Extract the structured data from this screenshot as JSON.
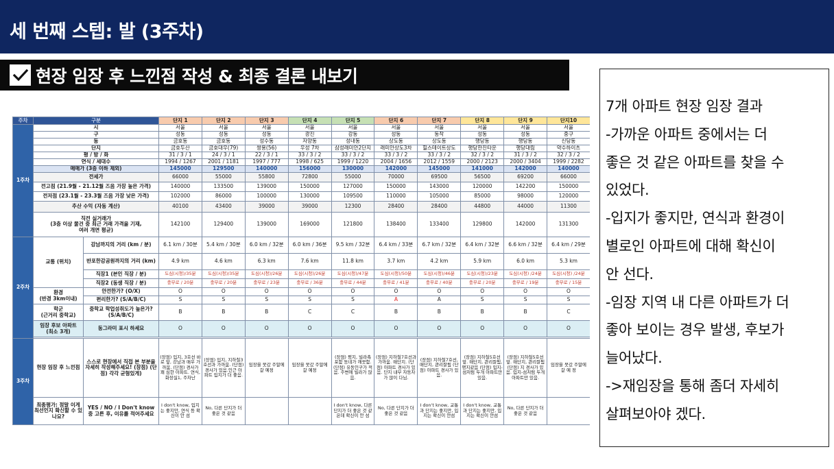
{
  "header": {
    "title": "세 번째 스텝: 발 (3주차)"
  },
  "section": {
    "title": "현장 임장 후 느낀점 작성 & 최종 결론 내보기"
  },
  "notes": [
    "7개 아파트 현장 임장 결과",
    "-가까운 아파트 중에서는 더",
    "좋은 것 같은 아파트를 찾을 수",
    "있었다.",
    "-입지가 좋지만, 연식과 환경이",
    "별로인 아파트에 대해 확신이",
    "안 선다.",
    "-임장 지역 내 다른 아파트가 더",
    "좋아 보이는 경우 발생, 후보가",
    "늘어났다.",
    "->재임장을 통해 좀더 자세히",
    "살펴보아야 겠다."
  ],
  "colors": {
    "top_bar": "#0f2660",
    "banner": "#0b0b0b",
    "table_header": "#1f4e98"
  },
  "sheet": {
    "head": {
      "week": "주차",
      "label": "구분"
    },
    "complex_headers": [
      {
        "label": "단지 1",
        "bg": "#f8cbad"
      },
      {
        "label": "단지 2",
        "bg": "#f8cbad"
      },
      {
        "label": "단지 3",
        "bg": "#f8cbad"
      },
      {
        "label": "단지 4",
        "bg": "#c6e0b4"
      },
      {
        "label": "단지 5",
        "bg": "#c6e0b4"
      },
      {
        "label": "단지 6",
        "bg": "#f8cbad"
      },
      {
        "label": "단지 7",
        "bg": "#f8cbad"
      },
      {
        "label": "단지 8",
        "bg": "#ffe699"
      },
      {
        "label": "단지 9",
        "bg": "#ffe699"
      },
      {
        "label": "단지10",
        "bg": "#ffe699"
      }
    ],
    "weeks": {
      "w1": "1주차",
      "w2": "2주차",
      "w3": "3주차"
    },
    "w1_rows": [
      {
        "label": "시",
        "values": [
          "서울",
          "서울",
          "서울",
          "서울",
          "서울",
          "서울",
          "서울",
          "서울",
          "서울",
          "서울"
        ]
      },
      {
        "label": "구",
        "values": [
          "성동",
          "성동",
          "성동",
          "광진",
          "강동",
          "성동",
          "동작",
          "성동",
          "성동",
          "중구"
        ]
      },
      {
        "label": "동",
        "values": [
          "금호동",
          "금호동",
          "성수동",
          "자양동",
          "성내동",
          "상도동",
          "상도동",
          "행당동",
          "행당동",
          "신당동"
        ]
      },
      {
        "label": "단지",
        "values": [
          "금호두산",
          "금호대우(79)",
          "쌍용(56)",
          "우성 7차",
          "삼성래미안2단지",
          "래미안상도3차",
          "힐스테이트상도",
          "행당한진타운",
          "행당대림",
          "약수하이츠"
        ]
      },
      {
        "label": "평 / 방 / 화",
        "values": [
          "31 / 3 / 1",
          "24 / 3 / 1",
          "22 / 3 / 1",
          "33 / 3 / 2",
          "33 / 3 / 2",
          "33 / 3 / 2",
          "33 / 3 / 2",
          "32 / 3 / 2",
          "31 / 3 / 2",
          "32 / 3 / 2"
        ]
      },
      {
        "label": "연식 / 세대수",
        "values": [
          "1994 / 1267",
          "2001 / 1181",
          "1997 / 777",
          "1998 / 625",
          "1999 / 1220",
          "2004 / 1656",
          "2012 / 1559",
          "2000 / 2123",
          "2000 / 3404",
          "1999 / 2282"
        ]
      },
      {
        "label": "매매가 (3층 이하 제외)",
        "values": [
          "145000",
          "129500",
          "140000",
          "156000",
          "130000",
          "142000",
          "145000",
          "141000",
          "142000",
          "140000"
        ]
      },
      {
        "label": "전세가",
        "values": [
          "66000",
          "55000",
          "55800",
          "72800",
          "55000",
          "70000",
          "69500",
          "56500",
          "69200",
          "66000"
        ]
      },
      {
        "label": "전고점 (21.9월 - 21.12월 즈음 가장 높은 가격)",
        "values": [
          "140000",
          "133500",
          "139000",
          "150000",
          "127000",
          "150000",
          "143000",
          "120000",
          "142200",
          "150000"
        ]
      },
      {
        "label": "전저점 (23.1월 - 23.3월 즈음 가장 낮은 가격)",
        "values": [
          "102000",
          "86000",
          "100000",
          "130000",
          "109500",
          "110000",
          "105000",
          "85000",
          "98000",
          "120000"
        ]
      },
      {
        "label": "추산 수익 (자동 계산)",
        "values": [
          "40100",
          "43400",
          "39000",
          "39000",
          "12300",
          "28400",
          "28400",
          "44800",
          "44000",
          "11300"
        ]
      }
    ],
    "recent": {
      "label_line1": "직전 실거래가",
      "label_line2": "(3층 이상 물건 중 최근 거래 가격을 기재,",
      "label_line3": "여러 개면 평균)",
      "values": [
        "142100",
        "129400",
        "139000",
        "169000",
        "121800",
        "138400",
        "133400",
        "129800",
        "142000",
        "131300"
      ]
    },
    "w2": {
      "transport_label": "교통 (위치)",
      "gangnam": {
        "label": "강남까지의 거리 (km / 분)",
        "values": [
          "6.1 km / 30분",
          "5.4 km / 30분",
          "6.0 km / 32분",
          "6.0 km / 36분",
          "9.5 km / 32분",
          "6.4 km / 33분",
          "6.7 km / 32분",
          "6.4 km / 32분",
          "6.6 km / 32분",
          "6.4 km / 29분"
        ]
      },
      "river": {
        "label": "반포한강공원까지의 거리 (km)",
        "values": [
          "4.9 km",
          "4.6 km",
          "6.3 km",
          "7.6 km",
          "11.8 km",
          "3.7 km",
          "4.2 km",
          "5.9 km",
          "6.0 km",
          "5.3 km"
        ]
      },
      "job1": {
        "label": "직장1 (본인 직장 / 분)",
        "values": [
          "도심(시청)/35분",
          "도심(시청)/35분",
          "도심(시청)/26분",
          "도심(시청)/26분",
          "도심(시청)/47분",
          "도심(시청)/50분",
          "도심(시청)/46분",
          "도심(시청)/23분",
          "도심(시청) /24분",
          "도심(시청) /24분"
        ]
      },
      "job2": {
        "label": "직장2 (동생 직장 / 분)",
        "values": [
          "충무로 / 20분",
          "충무로 / 20분",
          "충무로 / 23분",
          "충무로 / 36분",
          "충무로 / 44분",
          "충무로 / 41분",
          "충무로 / 40분",
          "충무로 / 20분",
          "충무로 / 19분",
          "충무로 / 15분"
        ]
      },
      "env_label1": "환경",
      "env_label2": "(반경 3km이내)",
      "safe": {
        "label": "안전한가? (O/X)",
        "values": [
          "O",
          "O",
          "O",
          "O",
          "O",
          "O",
          "O",
          "O",
          "O",
          "O"
        ]
      },
      "conv": {
        "label": "편리한가? (S/A/B/C)",
        "values": [
          "S",
          "S",
          "S",
          "S",
          "S",
          "A",
          "A",
          "S",
          "S",
          "S"
        ]
      },
      "school_label1": "학군",
      "school_label2": "(근거리 중학교)",
      "school": {
        "label": "중학교 학업성취도가 높은가? (S/A/B/C)",
        "values": [
          "B",
          "B",
          "B",
          "C",
          "C",
          "B",
          "B",
          "B",
          "B",
          "C"
        ]
      },
      "cand_label1": "임장 후보 아파트",
      "cand_label2": "(최소 3개)",
      "cand": {
        "label": "동그라미 표시 하세요",
        "values": [
          "O",
          "O",
          "O",
          "O",
          "O",
          "O",
          "O",
          "O",
          "O",
          "O"
        ]
      }
    },
    "w3": {
      "feel_label": "현장 임장 후 느낀점",
      "feel_sub": "스스로 현장에서 직접 본 부분을 자세히 작성해주세요! (장점) (단점) 각각 균형있게)",
      "feel_values": [
        "(장점) 입지, 3호선 바로 앞, 강남과 매우 가까움. (단점) 경사가 꽤 심한 아파트. 연식, 화장실1, 주차난",
        "(장점) 입지, 지하철3호선과 가까움. (단점) 경사가 있음.인근 아파트 입지가 더 좋음.",
        "임장을 못갔 주말에 갈 예정",
        "임장을 못갔 주말에 갈 예정",
        "(장점) 평지, 빌라촉 포함 동네가 깨끗함. (단점) 유동인구가 적음. 주변에 빌라가 많음.",
        "(장점) 지하철7호선과 가까움. 매단지. (단점) 아파트 경사가 있음. 단지 내부 자동차가 많이 다님.",
        "(장점) 지하철7호선, 매단지, 관리잘됨 (단점) 아파트 경사가 있음.",
        "(장점) 지하철5호선 앞. 매단지, 관리잘됨, 평지같음 (단점) 입지-섬처럼 두개 아파트만 있음.",
        "(장점) 지하철5호선 앞. 매단지, 관리잘됨 (단점) 지 경사가 있음. 입지-섬처럼 두개 아파트만 있음.",
        "임장을 못갔 주말에 갈 예 정"
      ],
      "final_label": "최종평가: 정말 이게 최선인지 확신할 수 있나요?",
      "final_sub": "YES / NO / I Don't know 중 고른 후, 이유를 적어주세요",
      "final_values": [
        "I don't know, 입지는 좋지만, 연식 등 확신이 안 섬",
        "No, 다른 단지가 더 좋은 것 같음",
        "",
        "",
        "I don't know, 다른 단지가 더 좋은 것 같은데 확신이 안 섬",
        "No, 다른 단지가 더 좋은 것 같음",
        "I don't know, 교통과 단지는 좋지만, 입지는 확신이 안섬",
        "I don't know, 교통과 단지는 좋지만, 입지는 확신이 안섬",
        "No, 다른 단지가 더 좋은 것 같음",
        ""
      ]
    }
  }
}
